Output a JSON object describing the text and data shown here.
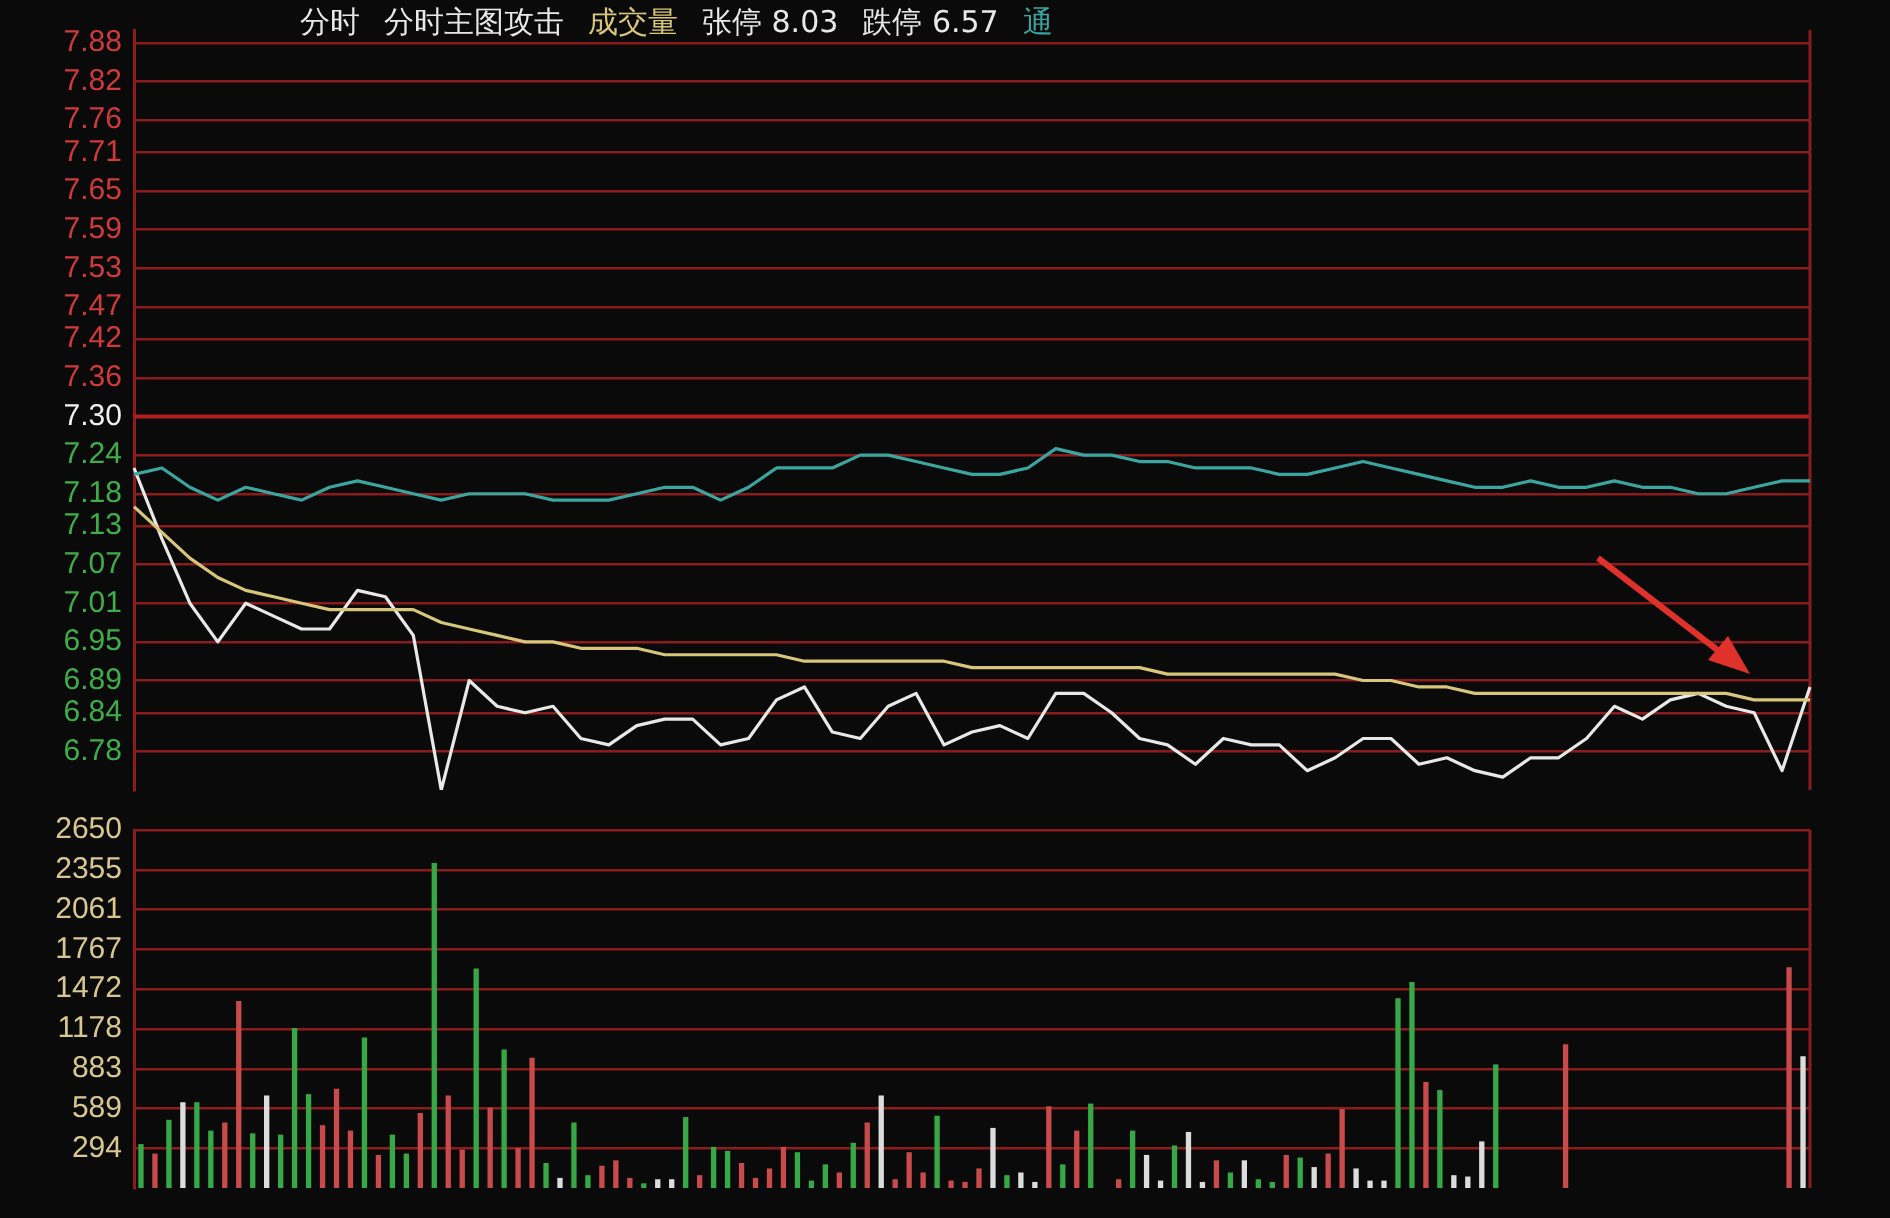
{
  "chart_data": [
    {
      "type": "line",
      "annotations": [
        "分时",
        "分时主图攻击",
        "成交量",
        "张停 8.03",
        "跌停 6.57",
        "通"
      ],
      "categories": [
        null,
        null,
        null,
        null,
        null,
        null,
        null,
        null,
        null,
        null,
        null,
        null,
        null,
        null,
        null,
        null,
        null,
        null,
        null,
        null,
        null,
        null,
        null,
        null,
        null,
        null,
        null,
        null,
        null,
        null,
        null,
        null,
        null,
        null,
        null,
        null,
        null,
        null,
        null,
        null,
        null,
        null,
        null,
        null,
        null,
        null,
        null,
        null,
        null,
        null,
        null,
        null,
        null,
        null,
        null,
        null,
        null,
        null,
        null,
        null,
        null
      ],
      "series": [
        {
          "color": "#3ba6a0",
          "values": [
            7.21,
            7.22,
            7.19,
            7.17,
            7.19,
            7.18,
            7.17,
            7.19,
            7.2,
            7.19,
            7.18,
            7.17,
            7.18,
            7.18,
            7.18,
            7.17,
            7.17,
            7.17,
            7.18,
            7.19,
            7.19,
            7.17,
            7.19,
            7.22,
            7.22,
            7.22,
            7.24,
            7.24,
            7.23,
            7.22,
            7.21,
            7.21,
            7.22,
            7.25,
            7.24,
            7.24,
            7.23,
            7.23,
            7.22,
            7.22,
            7.22,
            7.21,
            7.21,
            7.22,
            7.23,
            7.22,
            7.21,
            7.2,
            7.19,
            7.19,
            7.2,
            7.19,
            7.19,
            7.2,
            7.19,
            7.19,
            7.18,
            7.18,
            7.19,
            7.2,
            7.2
          ]
        },
        {
          "color": "#d8c67a",
          "values": [
            7.16,
            7.12,
            7.08,
            7.05,
            7.03,
            7.02,
            7.01,
            7.0,
            7.0,
            7.0,
            7.0,
            6.98,
            6.97,
            6.96,
            6.95,
            6.95,
            6.94,
            6.94,
            6.94,
            6.93,
            6.93,
            6.93,
            6.93,
            6.93,
            6.92,
            6.92,
            6.92,
            6.92,
            6.92,
            6.92,
            6.91,
            6.91,
            6.91,
            6.91,
            6.91,
            6.91,
            6.91,
            6.9,
            6.9,
            6.9,
            6.9,
            6.9,
            6.9,
            6.9,
            6.89,
            6.89,
            6.88,
            6.88,
            6.87,
            6.87,
            6.87,
            6.87,
            6.87,
            6.87,
            6.87,
            6.87,
            6.87,
            6.87,
            6.86,
            6.86,
            6.86
          ]
        },
        {
          "color": "#e8e8e8",
          "values": [
            7.22,
            7.11,
            7.01,
            6.95,
            7.01,
            6.99,
            6.97,
            6.97,
            7.03,
            7.02,
            6.96,
            6.72,
            6.89,
            6.85,
            6.84,
            6.85,
            6.8,
            6.79,
            6.82,
            6.83,
            6.83,
            6.79,
            6.8,
            6.86,
            6.88,
            6.81,
            6.8,
            6.85,
            6.87,
            6.79,
            6.81,
            6.82,
            6.8,
            6.87,
            6.87,
            6.84,
            6.8,
            6.79,
            6.76,
            6.8,
            6.79,
            6.79,
            6.75,
            6.77,
            6.8,
            6.8,
            6.76,
            6.77,
            6.75,
            6.74,
            6.77,
            6.77,
            6.8,
            6.85,
            6.83,
            6.86,
            6.87,
            6.85,
            6.84,
            6.75,
            6.88
          ]
        }
      ],
      "ylim": [
        6.72,
        7.9
      ],
      "yticks": [
        7.88,
        7.82,
        7.76,
        7.71,
        7.65,
        7.59,
        7.53,
        7.47,
        7.42,
        7.36,
        {
          "value": 7.3,
          "label": "7.30"
        },
        7.24,
        7.18,
        7.13,
        7.07,
        7.01,
        6.95,
        6.89,
        6.84,
        6.78
      ],
      "ref_lines": [
        {
          "axis": "y",
          "value": 7.3,
          "color": "#b01e1e"
        }
      ],
      "grid": "y",
      "legend": false,
      "marker": "none",
      "line_style": "solid"
    },
    {
      "type": "bar",
      "categories": [
        null,
        null,
        null,
        null,
        null,
        null,
        null,
        null,
        null,
        null,
        null,
        null,
        null,
        null,
        null,
        null,
        null,
        null,
        null,
        null,
        null,
        null,
        null,
        null,
        null,
        null,
        null,
        null,
        null,
        null,
        null,
        null,
        null,
        null,
        null,
        null,
        null,
        null,
        null,
        null,
        null,
        null,
        null,
        null,
        null,
        null,
        null,
        null,
        null,
        null,
        null,
        null,
        null,
        null,
        null,
        null,
        null,
        null,
        null,
        null,
        null,
        null,
        null,
        null,
        null,
        null,
        null,
        null,
        null,
        null,
        null,
        null,
        null,
        null,
        null,
        null,
        null,
        null,
        null,
        null,
        null,
        null,
        null,
        null,
        null,
        null,
        null,
        null,
        null,
        null,
        null,
        null,
        null,
        null,
        null,
        null,
        null,
        null,
        null,
        null,
        null,
        null,
        null,
        null,
        null,
        null,
        null,
        null,
        null,
        null,
        null,
        null,
        null,
        null,
        null,
        null,
        null,
        null,
        null,
        null
      ],
      "values": [
        320,
        250,
        500,
        630,
        630,
        420,
        480,
        1380,
        400,
        680,
        390,
        1180,
        690,
        460,
        730,
        420,
        1110,
        240,
        390,
        250,
        550,
        2400,
        680,
        280,
        1620,
        590,
        1020,
        290,
        960,
        180,
        70,
        480,
        90,
        160,
        200,
        70,
        30,
        60,
        60,
        520,
        90,
        300,
        270,
        180,
        70,
        140,
        300,
        260,
        50,
        170,
        110,
        330,
        480,
        680,
        60,
        260,
        110,
        530,
        50,
        40,
        140,
        440,
        90,
        110,
        40,
        600,
        170,
        420,
        620,
        null,
        60,
        420,
        240,
        50,
        310,
        410,
        40,
        200,
        110,
        200,
        60,
        40,
        240,
        220,
        150,
        250,
        580,
        140,
        50,
        50,
        1400,
        1520,
        780,
        720,
        90,
        80,
        340,
        910,
        null,
        null,
        null,
        null,
        1060,
        null,
        null,
        null,
        null,
        null,
        null,
        null,
        null,
        null,
        null,
        null,
        null,
        null,
        null,
        null,
        1630,
        970
      ],
      "colors": [
        "#36a845",
        "#c94a4a",
        "#36a845",
        "#dcdcdc",
        "#36a845",
        "#36a845",
        "#c94a4a",
        "#c94a4a",
        "#36a845",
        "#dcdcdc",
        "#36a845",
        "#36a845",
        "#36a845",
        "#c94a4a",
        "#c94a4a",
        "#c94a4a",
        "#36a845",
        "#c94a4a",
        "#36a845",
        "#36a845",
        "#c94a4a",
        "#36a845",
        "#c94a4a",
        "#c94a4a",
        "#36a845",
        "#c94a4a",
        "#36a845",
        "#c94a4a",
        "#c94a4a",
        "#36a845",
        "#dcdcdc",
        "#36a845",
        "#36a845",
        "#c94a4a",
        "#c94a4a",
        "#c94a4a",
        "#36a845",
        "#dcdcdc",
        "#dcdcdc",
        "#36a845",
        "#c94a4a",
        "#36a845",
        "#36a845",
        "#c94a4a",
        "#c94a4a",
        "#c94a4a",
        "#c94a4a",
        "#36a845",
        "#36a845",
        "#36a845",
        "#c94a4a",
        "#36a845",
        "#c94a4a",
        "#dcdcdc",
        "#c94a4a",
        "#c94a4a",
        "#c94a4a",
        "#36a845",
        "#c94a4a",
        "#c94a4a",
        "#c94a4a",
        "#dcdcdc",
        "#36a845",
        "#dcdcdc",
        "#dcdcdc",
        "#c94a4a",
        "#36a845",
        "#c94a4a",
        "#36a845",
        null,
        "#c94a4a",
        "#36a845",
        "#dcdcdc",
        "#dcdcdc",
        "#36a845",
        "#dcdcdc",
        "#dcdcdc",
        "#c94a4a",
        "#36a845",
        "#dcdcdc",
        "#36a845",
        "#36a845",
        "#c94a4a",
        "#36a845",
        "#dcdcdc",
        "#c94a4a",
        "#c94a4a",
        "#dcdcdc",
        "#dcdcdc",
        "#dcdcdc",
        "#36a845",
        "#36a845",
        "#c94a4a",
        "#36a845",
        "#dcdcdc",
        "#dcdcdc",
        "#dcdcdc",
        "#36a845",
        null,
        null,
        null,
        null,
        "#c94a4a",
        null,
        null,
        null,
        null,
        null,
        null,
        null,
        null,
        null,
        null,
        null,
        null,
        null,
        null,
        null,
        "#c94a4a",
        "#dcdcdc"
      ],
      "ylim": [
        0,
        2650
      ],
      "yticks": [
        294,
        589,
        883,
        1178,
        1472,
        1767,
        2061,
        2355,
        2650
      ],
      "grid": "y",
      "legend": false
    }
  ]
}
